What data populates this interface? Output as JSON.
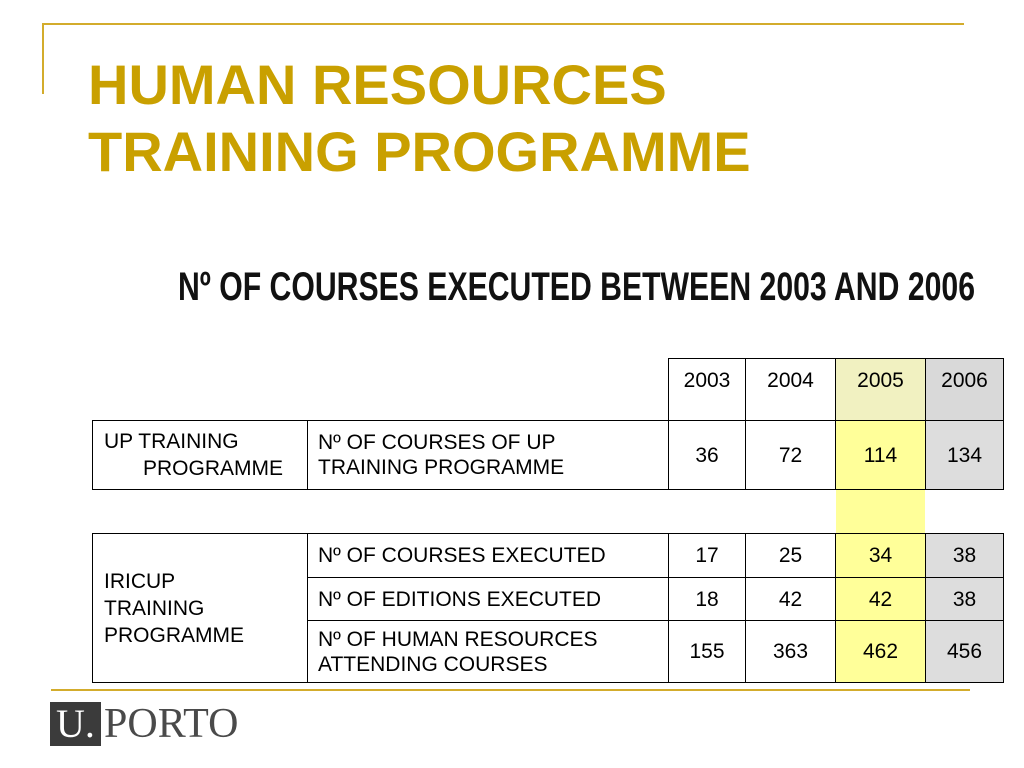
{
  "slide": {
    "title": "HUMAN RESOURCES TRAINING PROGRAMME",
    "subtitle": "Nº OF COURSES EXECUTED BETWEEN 2003 AND 2006"
  },
  "table": {
    "columns": [
      "2003",
      "2004",
      "2005",
      "2006"
    ],
    "up_programme": {
      "group_label": "UP TRAINING PROGRAMME",
      "rows": [
        {
          "label": "Nº OF COURSES OF UP TRAINING PROGRAMME",
          "values": [
            36,
            72,
            114,
            134
          ]
        }
      ]
    },
    "iricup_programme": {
      "group_label": "IRICUP TRAINING PROGRAMME",
      "rows": [
        {
          "label": "Nº OF COURSES EXECUTED",
          "values": [
            17,
            25,
            34,
            38
          ]
        },
        {
          "label": "Nº OF EDITIONS EXECUTED",
          "values": [
            18,
            42,
            42,
            38
          ]
        },
        {
          "label": "Nº OF HUMAN RESOURCES ATTENDING COURSES",
          "values": [
            155,
            363,
            462,
            456
          ]
        }
      ]
    }
  },
  "logo": {
    "mark": "U.",
    "name": "PORTO"
  },
  "colors": {
    "title_gold": "#C9A000",
    "rule_gold": "#D3AC2C",
    "highlight_2005": "#FFFF99",
    "highlight_2005_header": "#F1F1C1",
    "highlight_2006": "#DDDDDD",
    "highlight_2006_header": "#D9D9D9",
    "logo_box": "#3B3B3B",
    "logo_text": "#4A4A4A",
    "table_border": "#000000"
  }
}
